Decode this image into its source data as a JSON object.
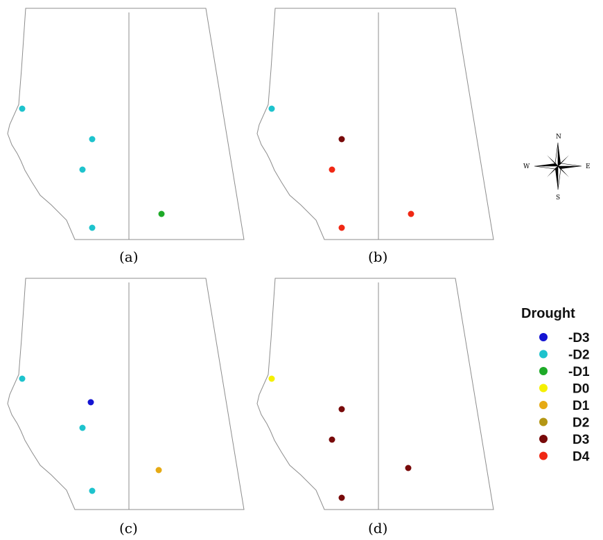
{
  "panels": [
    {
      "label": "(a)",
      "stations": [
        {
          "id": "s1",
          "category": "-D2"
        },
        {
          "id": "s2",
          "category": "-D2"
        },
        {
          "id": "s3",
          "category": "-D2"
        },
        {
          "id": "s4",
          "category": "-D2"
        },
        {
          "id": "s5",
          "category": "-D1"
        }
      ]
    },
    {
      "label": "(b)",
      "stations": [
        {
          "id": "s1",
          "category": "-D2"
        },
        {
          "id": "s2",
          "category": "D3"
        },
        {
          "id": "s3",
          "category": "D4"
        },
        {
          "id": "s4",
          "category": "D4"
        },
        {
          "id": "s5",
          "category": "D4"
        }
      ]
    },
    {
      "label": "(c)",
      "stations": [
        {
          "id": "s1",
          "category": "-D2"
        },
        {
          "id": "s2",
          "category": "-D3"
        },
        {
          "id": "s3",
          "category": "-D2"
        },
        {
          "id": "s4",
          "category": "-D2"
        },
        {
          "id": "s5",
          "category": "D1"
        }
      ]
    },
    {
      "label": "(d)",
      "stations": [
        {
          "id": "s1",
          "category": "D0"
        },
        {
          "id": "s2",
          "category": "D3"
        },
        {
          "id": "s3",
          "category": "D3"
        },
        {
          "id": "s4",
          "category": "D3"
        },
        {
          "id": "s5",
          "category": "D3"
        }
      ]
    }
  ],
  "legend": {
    "title": "Drought",
    "items": [
      {
        "label": "-D3",
        "color": "#1414d2"
      },
      {
        "label": "-D2",
        "color": "#1ec3cd"
      },
      {
        "label": "-D1",
        "color": "#1eaa28"
      },
      {
        "label": "D0",
        "color": "#f5f000"
      },
      {
        "label": "D1",
        "color": "#e6aa14"
      },
      {
        "label": "D2",
        "color": "#b49614"
      },
      {
        "label": "D3",
        "color": "#780a0a"
      },
      {
        "label": "D4",
        "color": "#f02814"
      }
    ]
  },
  "compass": {
    "icon": "compass-rose-icon",
    "n": "N",
    "s": "S",
    "e": "E",
    "w": "W"
  }
}
